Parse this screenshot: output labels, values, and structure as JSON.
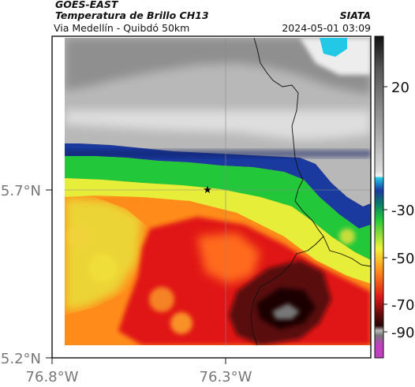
{
  "header": {
    "title1": "GOES-EAST",
    "title2": "Temperatura de Brillo CH13",
    "subtitle": "Via Medellín - Quibdó 50km",
    "agency": "SIATA",
    "datetime": "2024-05-01 03:09"
  },
  "map": {
    "lat_ticks": [
      {
        "value": 5.7,
        "label": "5.7°N"
      },
      {
        "value": 5.2,
        "label": "5.2°N"
      }
    ],
    "lon_ticks": [
      {
        "value": -76.8,
        "label": "76.8°W"
      },
      {
        "value": -76.3,
        "label": "76.3°W"
      }
    ],
    "marker": {
      "symbol": "★",
      "name": "station-star"
    }
  },
  "colorbar": {
    "ticks": [
      {
        "value": 20,
        "label": "20"
      },
      {
        "value": -30,
        "label": "-30"
      },
      {
        "value": -50,
        "label": "-50"
      },
      {
        "value": -70,
        "label": "-70"
      },
      {
        "value": -90,
        "label": "-90"
      }
    ],
    "colors": {
      "top_black": "#111111",
      "gray": "#9a9a9a",
      "cyan": "#22c8e6",
      "blue": "#1a3aa0",
      "green": "#22c83a",
      "yellow": "#f2f23a",
      "orange": "#ff8c1a",
      "red": "#e01818",
      "dark_red": "#5a0a0a",
      "magenta": "#c040c0"
    }
  }
}
